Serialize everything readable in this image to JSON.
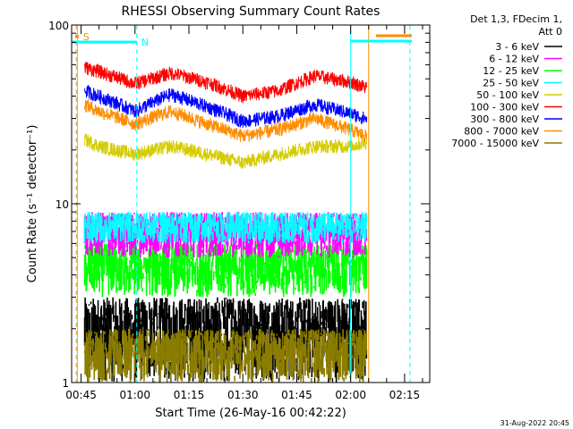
{
  "chart_data": {
    "type": "line",
    "title": "RHESSI Observing Summary Count Rates",
    "xlabel": "Start Time (26-May-16 00:42:22)",
    "ylabel": "Count Rate (s⁻¹ detector⁻¹)",
    "x_scale": "time",
    "y_scale": "log",
    "xlim": [
      "00:42:22",
      "02:22:00"
    ],
    "ylim": [
      1,
      100
    ],
    "x_ticks": [
      "00:45",
      "01:00",
      "01:15",
      "01:30",
      "01:45",
      "02:00",
      "02:15"
    ],
    "y_ticks": [
      "1",
      "10",
      "100"
    ],
    "legend_header": [
      "Det 1,3, FDecim 1,",
      "Att 0"
    ],
    "legend_position": "right, outside plot",
    "timestamp": "31-Aug-2022 20:45",
    "flags": [
      {
        "label": "S",
        "color": "#ff8c00",
        "x_start": "00:43:20",
        "x_end": "00:44:20"
      },
      {
        "label": "N",
        "color": "#00ffff",
        "x_start": "00:42:22",
        "x_end": "01:00:30"
      }
    ],
    "flag_bars": [
      {
        "color": "#00ffff",
        "x_start": "02:00:00",
        "x_end": "02:17:00"
      },
      {
        "color": "#ff8c00",
        "x_start": "02:07:00",
        "x_end": "02:17:00"
      }
    ],
    "vlines": [
      {
        "x": "00:43:40",
        "color": "#ff8c00",
        "style": "dashed"
      },
      {
        "x": "00:44:00",
        "color": "#00ffff",
        "style": "solid"
      },
      {
        "x": "01:00:30",
        "color": "#00ffff",
        "style": "dashed"
      },
      {
        "x": "02:00:00",
        "color": "#00ffff",
        "style": "solid"
      },
      {
        "x": "02:05:00",
        "color": "#ff8c00",
        "style": "solid"
      },
      {
        "x": "02:16:30",
        "color": "#00ffff",
        "style": "dashed"
      }
    ],
    "data_time_range": [
      "00:46:00",
      "02:04:30"
    ],
    "series": [
      {
        "name": "3 - 6 keV",
        "color": "#000000",
        "band": [
          1,
          3
        ],
        "times": [
          "00:46",
          "00:50",
          "01:00",
          "01:10",
          "01:20",
          "01:30",
          "01:40",
          "01:50",
          "02:00",
          "02:04"
        ],
        "values": [
          2.0,
          2.0,
          2.2,
          2.3,
          2.2,
          2.1,
          2.2,
          2.2,
          2.0,
          2.0
        ]
      },
      {
        "name": "6 - 12 keV",
        "color": "#ff00ff",
        "band": [
          5,
          9
        ],
        "times": [
          "00:46",
          "00:50",
          "01:00",
          "01:10",
          "01:20",
          "01:30",
          "01:40",
          "01:50",
          "02:00",
          "02:04"
        ],
        "values": [
          6.5,
          6.5,
          6.5,
          6.5,
          6.5,
          6.5,
          6.5,
          6.5,
          6.5,
          6.5
        ]
      },
      {
        "name": "12 - 25 keV",
        "color": "#00ff00",
        "band": [
          3,
          6
        ],
        "times": [
          "00:46",
          "00:50",
          "01:00",
          "01:10",
          "01:20",
          "01:30",
          "01:40",
          "01:50",
          "02:00",
          "02:04"
        ],
        "values": [
          5,
          5,
          4.5,
          4.2,
          4.5,
          4.5,
          4.5,
          4.5,
          4.5,
          4.5
        ]
      },
      {
        "name": "25 - 50 keV",
        "color": "#00ffff",
        "band": [
          6,
          9
        ],
        "times": [
          "00:46",
          "00:50",
          "01:00",
          "01:10",
          "01:20",
          "01:30",
          "01:40",
          "01:50",
          "02:00",
          "02:04"
        ],
        "values": [
          7.5,
          7.5,
          7.5,
          7.5,
          7.5,
          7.5,
          7.5,
          7.5,
          7.5,
          7.5
        ]
      },
      {
        "name": "50 - 100 keV",
        "color": "#d4cc00",
        "times": [
          "00:46",
          "00:50",
          "01:00",
          "01:10",
          "01:20",
          "01:30",
          "01:40",
          "01:50",
          "02:00",
          "02:04"
        ],
        "values": [
          23,
          21,
          19,
          21,
          19,
          17,
          19,
          21,
          21,
          22
        ]
      },
      {
        "name": "100 - 300 keV",
        "color": "#ff0000",
        "times": [
          "00:46",
          "00:50",
          "01:00",
          "01:10",
          "01:20",
          "01:30",
          "01:40",
          "01:50",
          "02:00",
          "02:04"
        ],
        "values": [
          58,
          55,
          47,
          54,
          48,
          40,
          43,
          52,
          48,
          45
        ]
      },
      {
        "name": "300 - 800 keV",
        "color": "#0000ff",
        "times": [
          "00:46",
          "00:50",
          "01:00",
          "01:10",
          "01:20",
          "01:30",
          "01:40",
          "01:50",
          "02:00",
          "02:04"
        ],
        "values": [
          43,
          40,
          33,
          41,
          35,
          29,
          31,
          36,
          32,
          30
        ]
      },
      {
        "name": "800 - 7000 keV",
        "color": "#ff8c00",
        "times": [
          "00:46",
          "00:50",
          "01:00",
          "01:10",
          "01:20",
          "01:30",
          "01:40",
          "01:50",
          "02:00",
          "02:04"
        ],
        "values": [
          36,
          33,
          28,
          33,
          28,
          24,
          26,
          30,
          26,
          24
        ]
      },
      {
        "name": "7000 - 15000 keV",
        "color": "#8b7d00",
        "band": [
          1,
          2
        ],
        "times": [
          "00:46",
          "00:50",
          "01:00",
          "01:10",
          "01:20",
          "01:30",
          "01:40",
          "01:50",
          "02:00",
          "02:04"
        ],
        "values": [
          1.8,
          1.8,
          1.8,
          1.8,
          1.8,
          1.8,
          1.8,
          1.8,
          1.8,
          1.8
        ]
      }
    ]
  }
}
